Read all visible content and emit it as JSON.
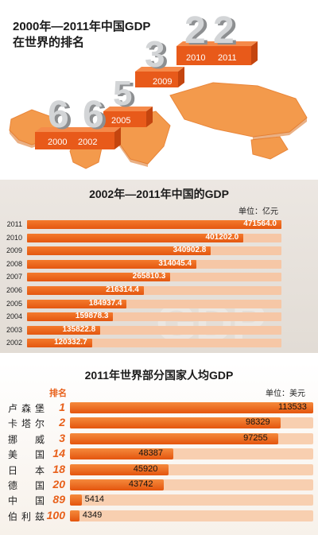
{
  "panel1": {
    "title_line1": "2000年—2011年中国GDP",
    "title_line2": "在世界的排名",
    "steps": [
      {
        "year": "2000",
        "rank": "6"
      },
      {
        "year": "2002",
        "rank": "6"
      },
      {
        "year": "2005",
        "rank": "5"
      },
      {
        "year": "2009",
        "rank": "3"
      },
      {
        "year": "2010",
        "rank": "2"
      },
      {
        "year": "2011",
        "rank": "2"
      }
    ]
  },
  "panel2": {
    "title": "2002年—2011年中国的GDP",
    "unit": "单位：亿元",
    "watermark": "GDP"
  },
  "panel3": {
    "title": "2011年世界部分国家人均GDP",
    "unit": "单位：美元",
    "rank_header": "排名"
  },
  "colors": {
    "accent": "#e8601a",
    "bar_dark": "#e45710",
    "bar_light": "#f6c7a6"
  },
  "chart_data": [
    {
      "type": "bar",
      "title": "2002年—2011年中国的GDP",
      "unit": "单位：亿元",
      "orientation": "horizontal",
      "categories": [
        "2011",
        "2010",
        "2009",
        "2008",
        "2007",
        "2006",
        "2005",
        "2004",
        "2003",
        "2002"
      ],
      "values": [
        471564.0,
        401202.0,
        340902.8,
        314045.4,
        265810.3,
        216314.4,
        184937.4,
        159878.3,
        135822.8,
        120332.7
      ],
      "labels": [
        "471564.0",
        "401202.0",
        "340902.8",
        "314045.4",
        "265810.3",
        "216314.4",
        "184937.4",
        "159878.3",
        "135822.8",
        "120332.7"
      ],
      "xlim": [
        0,
        471564.0
      ]
    },
    {
      "type": "bar",
      "title": "2011年世界部分国家人均GDP",
      "unit": "单位：美元",
      "orientation": "horizontal",
      "categories": [
        "卢森堡",
        "卡塔尔",
        "挪威",
        "美国",
        "日本",
        "德国",
        "中国",
        "伯利兹"
      ],
      "ranks": [
        "1",
        "2",
        "3",
        "14",
        "18",
        "20",
        "89",
        "100"
      ],
      "values": [
        113533,
        98329,
        97255,
        48387,
        45920,
        43742,
        5414,
        4349
      ],
      "labels": [
        "113533",
        "98329",
        "97255",
        "48387",
        "45920",
        "43742",
        "5414",
        "4349"
      ],
      "xlim": [
        0,
        113533
      ]
    }
  ]
}
